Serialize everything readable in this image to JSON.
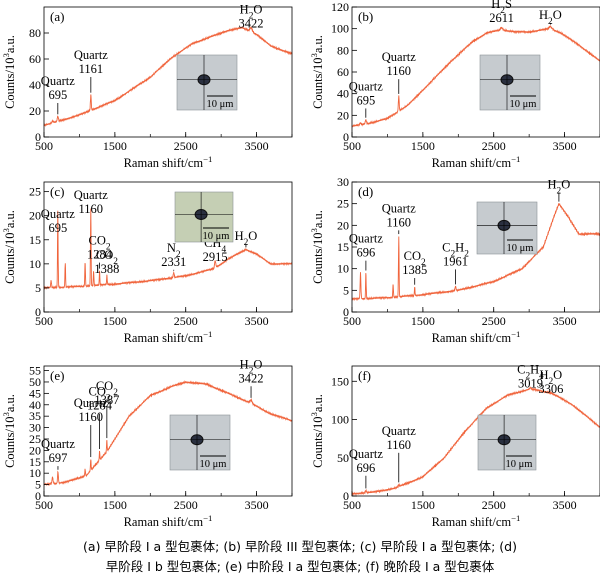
{
  "chart_data": [
    {
      "type": "line",
      "panel_label": "(a)",
      "xlabel": "Raman shift/cm⁻¹",
      "ylabel": "Counts/10³a.u.",
      "xlim": [
        500,
        4000
      ],
      "ylim": [
        0,
        100
      ],
      "xticks": [
        500,
        1500,
        2500,
        3500
      ],
      "yticks": [
        0,
        20,
        40,
        60,
        80
      ],
      "color": "#f0643c",
      "baseline": [
        [
          500,
          9
        ],
        [
          700,
          12
        ],
        [
          1000,
          17
        ],
        [
          1500,
          28
        ],
        [
          2000,
          46
        ],
        [
          2300,
          61
        ],
        [
          2600,
          72
        ],
        [
          2900,
          78
        ],
        [
          3100,
          82
        ],
        [
          3300,
          84
        ],
        [
          3500,
          79
        ],
        [
          3700,
          70
        ],
        [
          4000,
          64
        ]
      ],
      "peaks": [
        [
          620,
          1.5,
          15
        ],
        [
          695,
          4,
          12
        ],
        [
          1161,
          12,
          8
        ],
        [
          3422,
          3,
          25
        ]
      ],
      "annotations": [
        {
          "lines": [
            "Quartz",
            "695"
          ],
          "x": 695,
          "y": 40
        },
        {
          "lines": [
            "Quartz",
            "1161"
          ],
          "x": 1161,
          "y": 60
        },
        {
          "lines": [
            "H₂O",
            "3422"
          ],
          "x": 3422,
          "y": 95
        }
      ],
      "scalebar": "10 μm"
    },
    {
      "type": "line",
      "panel_label": "(b)",
      "xlabel": "Raman shift/cm⁻¹",
      "ylabel": "Counts/10³a.u.",
      "xlim": [
        500,
        4000
      ],
      "ylim": [
        0,
        120
      ],
      "xticks": [
        500,
        1500,
        2500,
        3500
      ],
      "yticks": [
        0,
        20,
        40,
        60,
        80,
        100,
        120
      ],
      "color": "#f0643c",
      "baseline": [
        [
          500,
          10
        ],
        [
          700,
          12
        ],
        [
          1000,
          17
        ],
        [
          1300,
          30
        ],
        [
          1600,
          50
        ],
        [
          1900,
          70
        ],
        [
          2200,
          88
        ],
        [
          2400,
          96
        ],
        [
          2611,
          99
        ],
        [
          2800,
          97
        ],
        [
          3000,
          97
        ],
        [
          3300,
          100
        ],
        [
          3450,
          96
        ],
        [
          3700,
          85
        ],
        [
          4000,
          70
        ]
      ],
      "peaks": [
        [
          620,
          1.5,
          15
        ],
        [
          695,
          4,
          12
        ],
        [
          1160,
          14,
          8
        ],
        [
          2611,
          2,
          20
        ],
        [
          3300,
          2,
          30
        ]
      ],
      "annotations": [
        {
          "lines": [
            "Quartz",
            "695"
          ],
          "x": 695,
          "y": 43
        },
        {
          "lines": [
            "Quartz",
            "1160"
          ],
          "x": 1160,
          "y": 70
        },
        {
          "lines": [
            "H₂S",
            "2611"
          ],
          "x": 2611,
          "y": 119
        },
        {
          "lines": [
            "H₂O"
          ],
          "x": 3300,
          "y": 109
        }
      ],
      "scalebar": "10 μm"
    },
    {
      "type": "line",
      "panel_label": "(c)",
      "xlabel": "Raman shift/cm⁻¹",
      "ylabel": "Counts/10³a.u.",
      "xlim": [
        500,
        4000
      ],
      "ylim": [
        0,
        27
      ],
      "xticks": [
        500,
        1500,
        2500,
        3500
      ],
      "yticks": [
        0,
        5,
        10,
        15,
        20,
        25
      ],
      "color": "#f0643c",
      "baseline": [
        [
          500,
          5
        ],
        [
          1000,
          5.3
        ],
        [
          1500,
          5.8
        ],
        [
          2000,
          6.5
        ],
        [
          2500,
          7.5
        ],
        [
          2900,
          9
        ],
        [
          3100,
          11
        ],
        [
          3350,
          13
        ],
        [
          3500,
          12
        ],
        [
          3700,
          10
        ],
        [
          4000,
          10
        ]
      ],
      "peaks": [
        [
          600,
          1.5,
          8
        ],
        [
          695,
          16,
          6
        ],
        [
          800,
          5,
          6
        ],
        [
          1160,
          16,
          6
        ],
        [
          1080,
          5,
          6
        ],
        [
          1200,
          3,
          6
        ],
        [
          1284,
          3,
          6
        ],
        [
          1388,
          2,
          6
        ],
        [
          2331,
          1,
          10
        ],
        [
          2915,
          1.5,
          12
        ]
      ],
      "annotations": [
        {
          "lines": [
            "Quartz",
            "695"
          ],
          "x": 695,
          "y": 19.5
        },
        {
          "lines": [
            "Quartz",
            "1160"
          ],
          "x": 1160,
          "y": 23.5
        },
        {
          "lines": [
            "CO₂",
            "1284"
          ],
          "x": 1284,
          "y": 14
        },
        {
          "lines": [
            "CO₂",
            "1388"
          ],
          "x": 1388,
          "y": 11
        },
        {
          "lines": [
            "N₂",
            "2331"
          ],
          "x": 2331,
          "y": 12.5
        },
        {
          "lines": [
            "CH₄",
            "2915"
          ],
          "x": 2915,
          "y": 13.5
        },
        {
          "lines": [
            "H₂O"
          ],
          "x": 3350,
          "y": 15
        }
      ],
      "scalebar": "10 μm"
    },
    {
      "type": "line",
      "panel_label": "(d)",
      "xlabel": "Raman shift/cm⁻¹",
      "ylabel": "Counts/10³a.u.",
      "xlim": [
        500,
        4000
      ],
      "ylim": [
        0,
        30
      ],
      "xticks": [
        500,
        1500,
        2500,
        3500
      ],
      "yticks": [
        0,
        5,
        10,
        15,
        20,
        25,
        30
      ],
      "color": "#f0643c",
      "baseline": [
        [
          500,
          3
        ],
        [
          1000,
          3.3
        ],
        [
          1500,
          4
        ],
        [
          2000,
          5
        ],
        [
          2500,
          7
        ],
        [
          2900,
          10
        ],
        [
          3200,
          15
        ],
        [
          3350,
          22
        ],
        [
          3420,
          25
        ],
        [
          3550,
          22
        ],
        [
          3700,
          18
        ],
        [
          4000,
          18
        ]
      ],
      "peaks": [
        [
          620,
          6,
          8
        ],
        [
          696,
          6,
          6
        ],
        [
          1080,
          3,
          6
        ],
        [
          1160,
          14,
          6
        ],
        [
          1385,
          2,
          6
        ],
        [
          1961,
          1,
          10
        ]
      ],
      "annotations": [
        {
          "lines": [
            "Quartz",
            "696"
          ],
          "x": 696,
          "y": 16
        },
        {
          "lines": [
            "Quartz",
            "1160"
          ],
          "x": 1160,
          "y": 23
        },
        {
          "lines": [
            "CO₂",
            "1385"
          ],
          "x": 1385,
          "y": 12
        },
        {
          "lines": [
            "C₂H₂",
            "1961"
          ],
          "x": 1961,
          "y": 14
        },
        {
          "lines": [
            "H₂O"
          ],
          "x": 3420,
          "y": 28.5
        }
      ],
      "scalebar": "10 μm"
    },
    {
      "type": "line",
      "panel_label": "(e)",
      "xlabel": "Raman shift/cm⁻¹",
      "ylabel": "Counts/10³a.u.",
      "xlim": [
        500,
        4000
      ],
      "ylim": [
        0,
        57
      ],
      "xticks": [
        500,
        1500,
        2500,
        3500
      ],
      "yticks": [
        0,
        5,
        10,
        15,
        20,
        25,
        30,
        35,
        40,
        45,
        50,
        55
      ],
      "color": "#f0643c",
      "baseline": [
        [
          500,
          5
        ],
        [
          800,
          6
        ],
        [
          1100,
          9
        ],
        [
          1400,
          20
        ],
        [
          1700,
          35
        ],
        [
          2000,
          44
        ],
        [
          2300,
          48
        ],
        [
          2500,
          50
        ],
        [
          2800,
          49
        ],
        [
          3100,
          45
        ],
        [
          3400,
          41
        ],
        [
          3700,
          36
        ],
        [
          4000,
          33
        ]
      ],
      "peaks": [
        [
          620,
          3,
          10
        ],
        [
          697,
          5,
          8
        ],
        [
          1080,
          3,
          6
        ],
        [
          1160,
          5,
          6
        ],
        [
          1284,
          4,
          6
        ],
        [
          1387,
          5,
          6
        ],
        [
          3422,
          1.5,
          20
        ]
      ],
      "annotations": [
        {
          "lines": [
            "Quartz",
            "697"
          ],
          "x": 697,
          "y": 21
        },
        {
          "lines": [
            "Quartz",
            "1160"
          ],
          "x": 1160,
          "y": 39
        },
        {
          "lines": [
            "CO₂",
            "1284"
          ],
          "x": 1284,
          "y": 44
        },
        {
          "lines": [
            "CO₂",
            "1387"
          ],
          "x": 1387,
          "y": 46.5
        },
        {
          "lines": [
            "H₂O",
            "3422"
          ],
          "x": 3422,
          "y": 56
        }
      ],
      "scalebar": "10 μm"
    },
    {
      "type": "line",
      "panel_label": "(f)",
      "xlabel": "Raman shift/cm⁻¹",
      "ylabel": "Counts/10³a.u.",
      "xlim": [
        500,
        4000
      ],
      "ylim": [
        0,
        170
      ],
      "xticks": [
        500,
        1500,
        2500,
        3500
      ],
      "yticks": [
        0,
        50,
        100,
        150
      ],
      "color": "#f0643c",
      "baseline": [
        [
          500,
          3
        ],
        [
          800,
          5
        ],
        [
          1100,
          10
        ],
        [
          1500,
          25
        ],
        [
          1800,
          50
        ],
        [
          2100,
          85
        ],
        [
          2400,
          115
        ],
        [
          2700,
          132
        ],
        [
          3019,
          140
        ],
        [
          3306,
          135
        ],
        [
          3600,
          120
        ],
        [
          3800,
          105
        ],
        [
          4000,
          90
        ]
      ],
      "peaks": [
        [
          696,
          3,
          10
        ],
        [
          1160,
          3,
          8
        ],
        [
          3019,
          1.5,
          15
        ]
      ],
      "annotations": [
        {
          "lines": [
            "Quartz",
            "696"
          ],
          "x": 696,
          "y": 50
        },
        {
          "lines": [
            "Quartz",
            "1160"
          ],
          "x": 1160,
          "y": 80
        },
        {
          "lines": [
            "C₂H₄",
            "3019"
          ],
          "x": 3019,
          "y": 160
        },
        {
          "lines": [
            "H₂O",
            "3306"
          ],
          "x": 3306,
          "y": 153
        }
      ],
      "scalebar": "10 μm"
    }
  ],
  "caption": {
    "line1": "(a)  早阶段 Ⅰ a 型包裹体;  (b)  早阶段 III 型包裹体;  (c)  早阶段 Ⅰ a 型包裹体;  (d)",
    "line2": "早阶段 Ⅰ b 型包裹体;  (e)  中阶段 Ⅰ a 型包裹体;  (f)  晚阶段 Ⅰ a 型包裹体"
  }
}
